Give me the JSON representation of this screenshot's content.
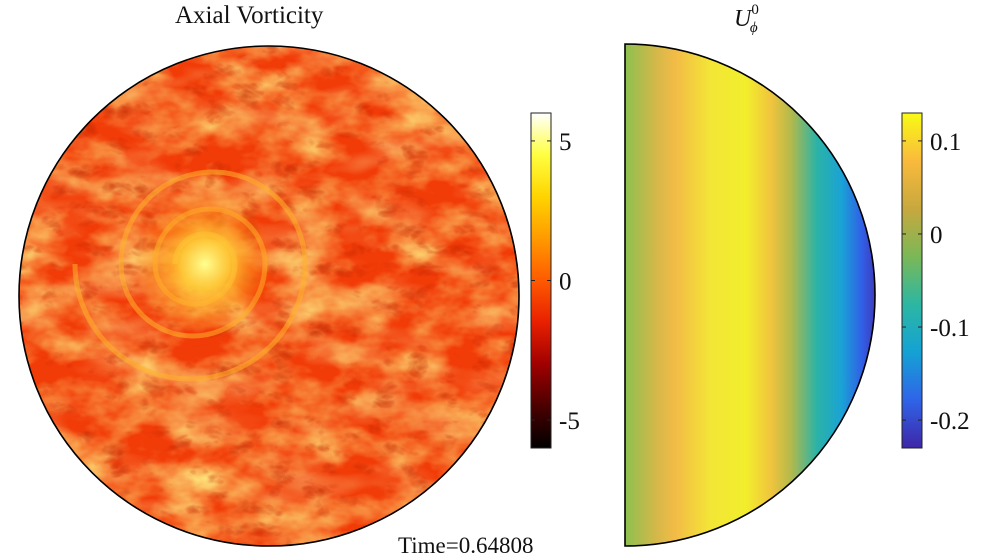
{
  "left_panel": {
    "title": "Axial Vorticity",
    "colorbar": {
      "ticks": [
        {
          "value": 5,
          "label": "5"
        },
        {
          "value": 0,
          "label": "0"
        },
        {
          "value": -5,
          "label": "-5"
        }
      ],
      "range": [
        -6,
        6
      ],
      "colormap": [
        "#000000",
        "#4a0000",
        "#a00000",
        "#e82000",
        "#ff5a00",
        "#ff9a00",
        "#ffd400",
        "#ffff40",
        "#ffffff"
      ]
    }
  },
  "right_panel": {
    "title_symbol": "U",
    "title_superscript": "0",
    "title_subscript": "ϕ",
    "colorbar": {
      "ticks": [
        {
          "value": 0.1,
          "label": "0.1"
        },
        {
          "value": 0,
          "label": "0"
        },
        {
          "value": -0.1,
          "label": "-0.1"
        },
        {
          "value": -0.2,
          "label": "-0.2"
        }
      ],
      "range": [
        -0.23,
        0.13
      ],
      "colormap": [
        "#3e26a8",
        "#2f64e8",
        "#14a2d4",
        "#2cb7a2",
        "#7ab857",
        "#c7a83e",
        "#f9ba3c",
        "#f9fb15"
      ]
    }
  },
  "time_label": "Time=0.64808"
}
